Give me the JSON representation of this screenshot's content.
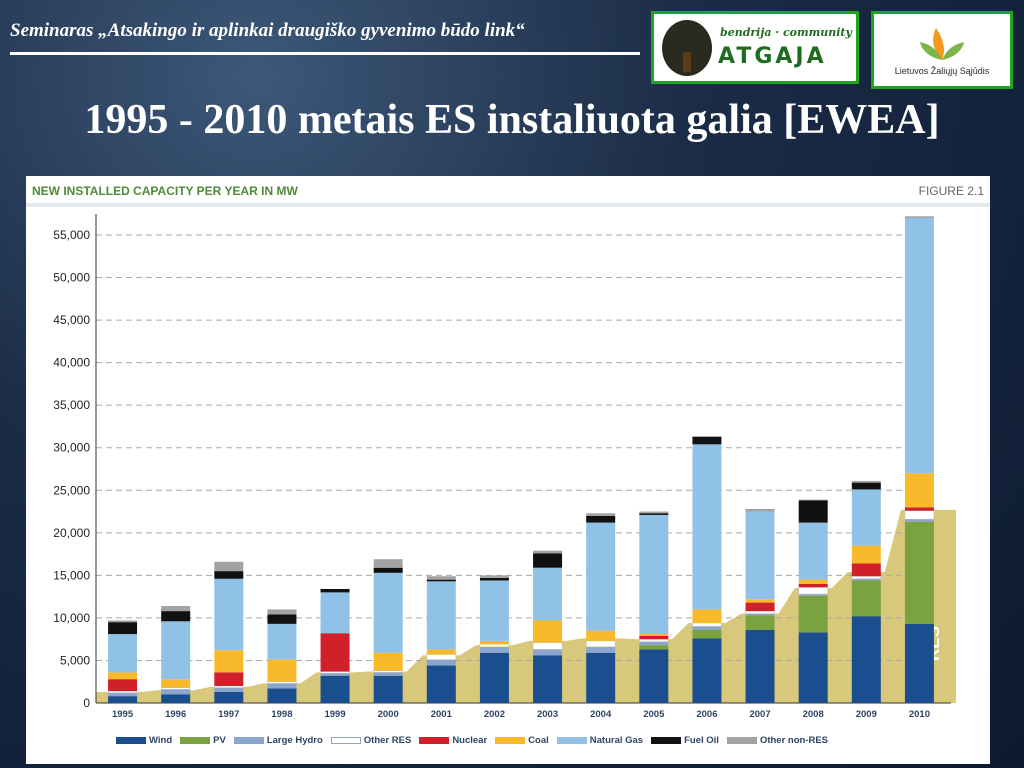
{
  "slide": {
    "seminar_title": "Seminaras „Atsakingo ir aplinkai draugiško gyvenimo būdo link“",
    "main_title": "1995 - 2010 metais ES instaliuota galia [EWEA]"
  },
  "logos": {
    "atgaja_line1": "bendrija · community",
    "atgaja_line2": "ATGAJA",
    "lzs_text": "Lietuvos Žaliųjų Sąjūdis"
  },
  "figure": {
    "heading": "NEW INSTALLED CAPACITY PER YEAR IN MW",
    "number": "FIGURE 2.1"
  },
  "colors": {
    "Wind": "#1b4e8e",
    "PV": "#7aa340",
    "Large Hydro": "#8aa6cf",
    "Other RES": "#ffffff",
    "Nuclear": "#d0202a",
    "Coal": "#f8b92a",
    "Natural Gas": "#8fc2e6",
    "Fuel Oil": "#111111",
    "Other non-RES": "#a3a3a3",
    "RES": "#d8c87b"
  },
  "chart_data": {
    "type": "bar",
    "stacked": true,
    "title": "NEW INSTALLED CAPACITY PER YEAR IN MW",
    "categories": [
      "1995",
      "1996",
      "1997",
      "1998",
      "1999",
      "2000",
      "2001",
      "2002",
      "2003",
      "2004",
      "2005",
      "2006",
      "2007",
      "2008",
      "2009",
      "2010"
    ],
    "y_ticks": [
      "0",
      "5,000",
      "10,000",
      "15,000",
      "20,000",
      "25,000",
      "30,000",
      "35,000",
      "40,000",
      "45,000",
      "50,000",
      "55,000"
    ],
    "ylim": [
      0,
      57500
    ],
    "grid": "dashed horizontal",
    "series": [
      {
        "name": "Wind",
        "values": [
          800,
          1000,
          1300,
          1700,
          3200,
          3200,
          4400,
          5900,
          5600,
          5900,
          6300,
          7600,
          8600,
          8300,
          10200,
          9300
        ]
      },
      {
        "name": "PV",
        "values": [
          0,
          0,
          0,
          0,
          0,
          0,
          0,
          0,
          0,
          0,
          500,
          1000,
          1700,
          4300,
          4200,
          12000
        ]
      },
      {
        "name": "Large Hydro",
        "values": [
          400,
          600,
          500,
          600,
          300,
          400,
          700,
          700,
          700,
          700,
          400,
          400,
          200,
          200,
          200,
          300
        ]
      },
      {
        "name": "Other RES",
        "values": [
          200,
          200,
          200,
          200,
          200,
          200,
          600,
          300,
          800,
          700,
          300,
          400,
          300,
          800,
          300,
          1000
        ]
      },
      {
        "name": "Nuclear",
        "values": [
          1400,
          0,
          1600,
          0,
          4500,
          0,
          0,
          0,
          0,
          0,
          400,
          0,
          1000,
          400,
          1500,
          400
        ]
      },
      {
        "name": "Coal",
        "values": [
          800,
          1000,
          2600,
          2600,
          0,
          2100,
          600,
          400,
          2600,
          1200,
          200,
          1600,
          400,
          500,
          2100,
          4000
        ]
      },
      {
        "name": "Natural Gas",
        "values": [
          4500,
          6800,
          8400,
          4200,
          4800,
          9400,
          8000,
          7100,
          6200,
          12700,
          14000,
          19400,
          10300,
          6700,
          6600,
          30000
        ]
      },
      {
        "name": "Fuel Oil",
        "values": [
          1400,
          1200,
          900,
          1100,
          400,
          600,
          200,
          300,
          1700,
          800,
          200,
          900,
          0,
          2600,
          800,
          0
        ]
      },
      {
        "name": "Other non-RES",
        "values": [
          200,
          600,
          1100,
          600,
          0,
          1000,
          400,
          300,
          300,
          300,
          200,
          0,
          300,
          100,
          200,
          200
        ]
      }
    ],
    "area": {
      "name": "RES",
      "values": [
        1300,
        1500,
        1900,
        2300,
        3600,
        3700,
        5600,
        6800,
        7300,
        7600,
        7500,
        9400,
        10500,
        13500,
        15400,
        22700
      ]
    }
  }
}
